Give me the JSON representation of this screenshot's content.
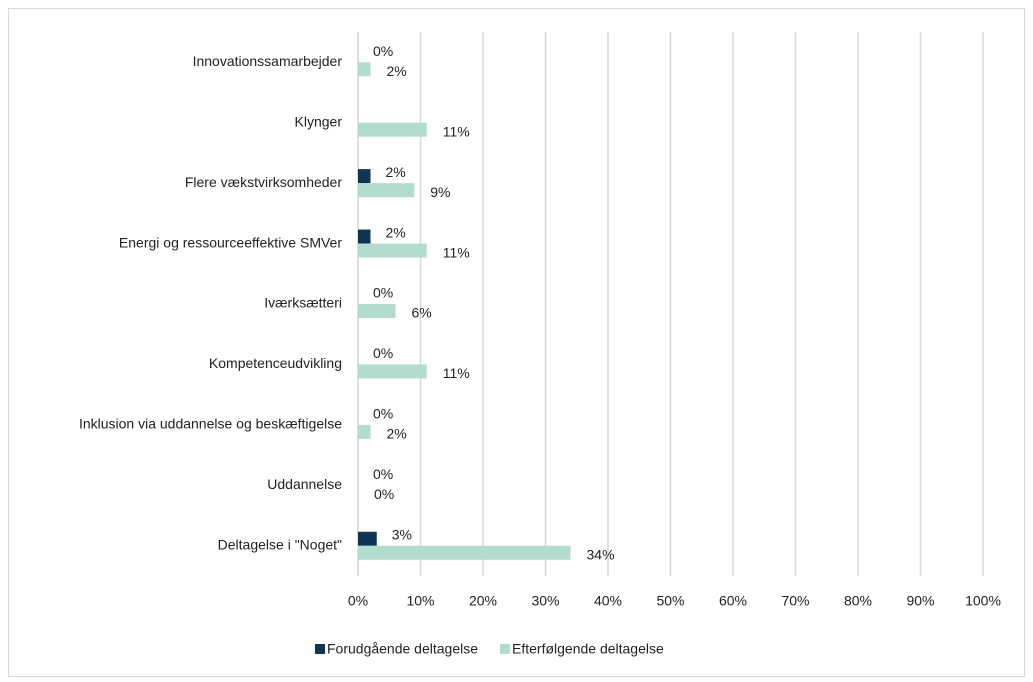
{
  "chart_data": {
    "type": "bar",
    "orientation": "horizontal",
    "categories": [
      "Innovationssamarbejder",
      "Klynger",
      "Flere vækstvirksomheder",
      "Energi og ressourceeffektive SMVer",
      "Iværksætteri",
      "Kompetenceudvikling",
      "Inklusion via uddannelse og beskæftigelse",
      "Uddannelse",
      "Deltagelse i \"Noget\""
    ],
    "series": [
      {
        "name": "Forudgående deltagelse",
        "color": "#0e3553",
        "values": [
          0,
          null,
          2,
          2,
          0,
          0,
          0,
          0,
          3
        ],
        "value_labels": [
          "0%",
          null,
          "2%",
          "2%",
          "0%",
          "0%",
          "0%",
          "0%",
          "3%"
        ]
      },
      {
        "name": "Efterfølgende deltagelse",
        "color": "#b2dccc",
        "values": [
          2,
          11,
          9,
          11,
          6,
          11,
          2,
          0,
          34
        ],
        "value_labels": [
          "2%",
          "11%",
          "9%",
          "11%",
          "6%",
          "11%",
          "2%",
          "0%",
          "34%"
        ]
      }
    ],
    "xlim": [
      0,
      100
    ],
    "xticks": [
      {
        "value": 0,
        "label": "0%"
      },
      {
        "value": 10,
        "label": "10%"
      },
      {
        "value": 20,
        "label": "20%"
      },
      {
        "value": 30,
        "label": "30%"
      },
      {
        "value": 40,
        "label": "40%"
      },
      {
        "value": 50,
        "label": "50%"
      },
      {
        "value": 60,
        "label": "60%"
      },
      {
        "value": 70,
        "label": "70%"
      },
      {
        "value": 80,
        "label": "80%"
      },
      {
        "value": 90,
        "label": "90%"
      },
      {
        "value": 100,
        "label": "100%"
      }
    ],
    "grid": true,
    "legend": "bottom"
  }
}
